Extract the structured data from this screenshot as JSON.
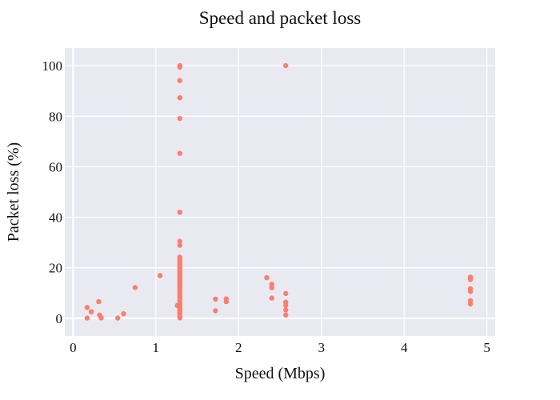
{
  "chart_data": {
    "type": "scatter",
    "title": "Speed and packet loss",
    "xlabel": "Speed (Mbps)",
    "ylabel": "Packet loss (%)",
    "xlim": [
      -0.1,
      5.1
    ],
    "ylim": [
      -7,
      107
    ],
    "xticks": [
      0,
      1,
      2,
      3,
      4,
      5
    ],
    "yticks": [
      0,
      20,
      40,
      60,
      80,
      100
    ],
    "grid": true,
    "legend": "none",
    "colors": {
      "marker": "#fa7f6f",
      "background": "#e9e9f2",
      "grid": "#ffffff"
    },
    "series": [
      {
        "points": [
          [
            0.17,
            4.3
          ],
          [
            0.17,
            0.1
          ],
          [
            0.22,
            2.6
          ],
          [
            0.31,
            6.6
          ],
          [
            0.32,
            1.3
          ],
          [
            0.34,
            0.2
          ],
          [
            0.54,
            0.1
          ],
          [
            0.61,
            1.8
          ],
          [
            0.75,
            12.2
          ],
          [
            1.05,
            16.9
          ],
          [
            1.26,
            5.1
          ],
          [
            1.29,
            100.0
          ],
          [
            1.29,
            99.4
          ],
          [
            1.29,
            94.1
          ],
          [
            1.29,
            87.3
          ],
          [
            1.29,
            79.1
          ],
          [
            1.29,
            65.3
          ],
          [
            1.29,
            42.0
          ],
          [
            1.29,
            30.5
          ],
          [
            1.29,
            28.9
          ],
          [
            1.29,
            24.2
          ],
          [
            1.29,
            23.5
          ],
          [
            1.29,
            22.8
          ],
          [
            1.29,
            22.0
          ],
          [
            1.29,
            21.3
          ],
          [
            1.29,
            20.6
          ],
          [
            1.29,
            19.9
          ],
          [
            1.29,
            19.1
          ],
          [
            1.29,
            18.4
          ],
          [
            1.29,
            17.7
          ],
          [
            1.29,
            17.0
          ],
          [
            1.29,
            16.2
          ],
          [
            1.29,
            15.5
          ],
          [
            1.29,
            14.8
          ],
          [
            1.29,
            14.0
          ],
          [
            1.29,
            13.3
          ],
          [
            1.29,
            12.6
          ],
          [
            1.29,
            11.9
          ],
          [
            1.29,
            11.1
          ],
          [
            1.29,
            10.4
          ],
          [
            1.29,
            9.7
          ],
          [
            1.29,
            8.9
          ],
          [
            1.29,
            8.2
          ],
          [
            1.29,
            7.5
          ],
          [
            1.29,
            6.8
          ],
          [
            1.29,
            6.0
          ],
          [
            1.29,
            5.3
          ],
          [
            1.29,
            4.6
          ],
          [
            1.29,
            3.8
          ],
          [
            1.29,
            3.1
          ],
          [
            1.29,
            2.4
          ],
          [
            1.29,
            1.7
          ],
          [
            1.29,
            0.9
          ],
          [
            1.29,
            0.2
          ],
          [
            1.72,
            7.6
          ],
          [
            1.72,
            3.0
          ],
          [
            1.85,
            7.7
          ],
          [
            1.85,
            6.6
          ],
          [
            2.34,
            16.1
          ],
          [
            2.4,
            13.5
          ],
          [
            2.4,
            12.1
          ],
          [
            2.4,
            8.0
          ],
          [
            2.57,
            100.0
          ],
          [
            2.57,
            9.8
          ],
          [
            2.57,
            6.4
          ],
          [
            2.57,
            5.1
          ],
          [
            2.57,
            3.3
          ],
          [
            2.57,
            1.3
          ],
          [
            4.8,
            16.3
          ],
          [
            4.8,
            15.4
          ],
          [
            4.8,
            11.7
          ],
          [
            4.8,
            10.6
          ],
          [
            4.8,
            7.0
          ],
          [
            4.8,
            5.7
          ]
        ]
      }
    ]
  }
}
